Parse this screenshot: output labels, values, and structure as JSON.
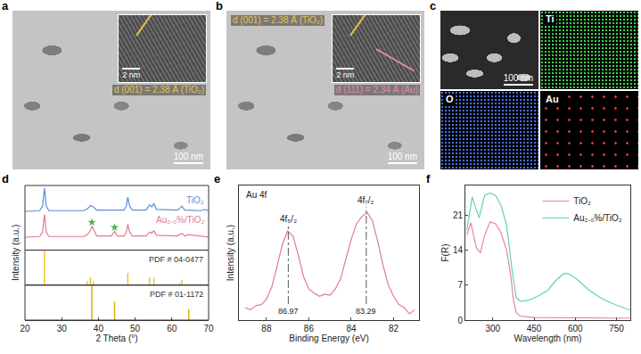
{
  "images": [
    {
      "panel": "a",
      "scale_bar": "100 nm",
      "inset_scale_bar": "2 nm",
      "labels": [
        {
          "text": "d (001) = 2.38 Å (TiO₂)",
          "color": "#e8c44a"
        }
      ]
    },
    {
      "panel": "b",
      "scale_bar": "100 nm",
      "inset_scale_bar": "2 nm",
      "labels": [
        {
          "text": "d (001) = 2.38 Å (TiO₂)",
          "color": "#e8c44a"
        },
        {
          "text": "d (111) = 2.34 Å (Au)",
          "color": "#e88aa0"
        }
      ]
    },
    {
      "panel": "c",
      "scale_bar": "100 nm",
      "maps": [
        {
          "element": "Ti",
          "color": "#3fcf4f"
        },
        {
          "element": "O",
          "color": "#4a6fe0"
        },
        {
          "element": "Au",
          "color": "#e03a3a"
        }
      ]
    }
  ],
  "chart_data": [
    {
      "panel": "d",
      "type": "line",
      "xlabel": "2 Theta (°)",
      "ylabel": "Intensity (a.u.)",
      "xlim": [
        20,
        70
      ],
      "xticks": [
        20,
        30,
        40,
        50,
        60,
        70
      ],
      "ylim": [
        0,
        10
      ],
      "tick_labels": "x",
      "series": [
        {
          "name": "TiO₂",
          "color": "#5b8fd6",
          "x": [
            20,
            24,
            24.8,
            25.3,
            25.8,
            26.5,
            36,
            37,
            37.9,
            38.6,
            39.5,
            47,
            47.6,
            48,
            48.5,
            49.2,
            53,
            53.9,
            54.5,
            55.1,
            55.8,
            61.5,
            62.2,
            62.7,
            63.5,
            68,
            68.8,
            70
          ],
          "values": [
            6.0,
            6.1,
            6.8,
            9.6,
            6.8,
            6.1,
            6.1,
            6.4,
            6.9,
            6.7,
            6.2,
            6.2,
            6.8,
            8.2,
            6.8,
            6.2,
            6.2,
            7.0,
            6.7,
            7.2,
            6.3,
            6.2,
            6.5,
            6.8,
            6.2,
            6.1,
            6.3,
            6.1
          ]
        },
        {
          "name": "Au₂.₀%/TiO₂",
          "color": "#e07b96",
          "x": [
            20,
            24,
            24.8,
            25.3,
            25.8,
            26.5,
            36,
            37,
            37.9,
            38.2,
            38.7,
            39.5,
            43.5,
            44.4,
            45.1,
            47,
            47.6,
            48,
            48.5,
            49.2,
            53,
            53.9,
            54.5,
            55.1,
            55.8,
            61.5,
            62.7,
            63.5,
            64.6,
            68,
            70
          ],
          "values": [
            2.0,
            2.1,
            2.8,
            5.5,
            2.8,
            2.1,
            2.1,
            2.4,
            3.1,
            3.7,
            3.2,
            2.2,
            2.2,
            2.9,
            2.2,
            2.2,
            2.8,
            4.0,
            2.8,
            2.2,
            2.2,
            2.8,
            2.6,
            3.0,
            2.3,
            2.2,
            2.6,
            2.2,
            2.4,
            2.1,
            2.0
          ]
        }
      ],
      "markers": {
        "marker": "star",
        "color": "#4cb84c",
        "x": [
          38.2,
          44.4
        ],
        "values": [
          4.3,
          3.5
        ]
      },
      "references": [
        {
          "name": "PDF # 04-0477",
          "type": "bar",
          "color": "#f2c21b",
          "ylim": [
            0,
            10
          ],
          "x": [
            25.3,
            37.0,
            37.8,
            38.6,
            48.0,
            53.9,
            55.1,
            62.1,
            62.7
          ],
          "values": [
            10,
            1.2,
            2.2,
            1.0,
            3.5,
            2.2,
            2.2,
            0.6,
            1.5
          ]
        },
        {
          "name": "PDF # 01-1172",
          "type": "bar",
          "color": "#d4b106",
          "ylim": [
            0,
            10
          ],
          "x": [
            38.2,
            44.4,
            64.6
          ],
          "values": [
            10,
            5.2,
            3.2
          ]
        }
      ]
    },
    {
      "panel": "e",
      "type": "line",
      "title": "Au 4f",
      "xlabel": "Binding Energy (eV)",
      "ylabel": "Intensity (a.u.)",
      "xlim": [
        89.3,
        80.8
      ],
      "xticks": [
        88,
        86,
        84,
        82
      ],
      "ylim": [
        0,
        13
      ],
      "tick_labels": "x",
      "series": [
        {
          "color": "#e07b96",
          "x": [
            89,
            88.75,
            88.5,
            88.25,
            88,
            87.75,
            87.5,
            87.25,
            87.0,
            86.75,
            86.5,
            86.25,
            86,
            85.75,
            85.5,
            85.25,
            85,
            84.75,
            84.5,
            84.25,
            84,
            83.75,
            83.5,
            83.25,
            83.0,
            82.75,
            82.5,
            82.25,
            82,
            81.75,
            81.5,
            81.25,
            81
          ],
          "values": [
            1.2,
            1.0,
            1.4,
            1.5,
            2.0,
            3.2,
            5.2,
            7.3,
            8.6,
            8.1,
            6.3,
            4.2,
            3.0,
            2.6,
            2.3,
            2.5,
            2.4,
            3.0,
            4.0,
            5.8,
            7.8,
            9.3,
            10.0,
            10.4,
            9.6,
            7.6,
            5.3,
            3.4,
            2.3,
            1.5,
            1.2,
            0.6,
            1.0
          ]
        }
      ],
      "peaks": [
        {
          "x": 86.97,
          "label": "4f₅/₂",
          "line_style": "dashdot"
        },
        {
          "x": 83.29,
          "label": "4f₇/₂",
          "line_style": "dashdot"
        }
      ]
    },
    {
      "panel": "f",
      "type": "line",
      "xlabel": "Wavelength (nm)",
      "ylabel": "F(R)",
      "xlim": [
        200,
        800
      ],
      "xticks": [
        300,
        450,
        600,
        750
      ],
      "ylim": [
        0,
        27
      ],
      "yticks": [
        0,
        7,
        14,
        21
      ],
      "legend": "top-right",
      "series": [
        {
          "name": "TiO₂",
          "color": "#e8879a",
          "x": [
            205,
            220,
            240,
            255,
            270,
            290,
            310,
            330,
            350,
            365,
            375,
            385,
            400,
            450,
            800
          ],
          "values": [
            17,
            19.5,
            14.5,
            13.5,
            17,
            19.7,
            19.3,
            17.5,
            14,
            9,
            4,
            1.5,
            0.8,
            0.5,
            0.4
          ]
        },
        {
          "name": "Au₂.₀%/TiO₂",
          "color": "#66d1b3",
          "x": [
            205,
            225,
            250,
            270,
            290,
            310,
            330,
            350,
            370,
            385,
            400,
            430,
            460,
            500,
            530,
            560,
            580,
            610,
            650,
            700,
            750,
            800
          ],
          "values": [
            18,
            24.7,
            20.5,
            25,
            25.5,
            25,
            23,
            19,
            10,
            4.5,
            3.8,
            4,
            4.7,
            6,
            8,
            9.4,
            9.2,
            8,
            6,
            4.2,
            3,
            2
          ]
        }
      ]
    }
  ]
}
